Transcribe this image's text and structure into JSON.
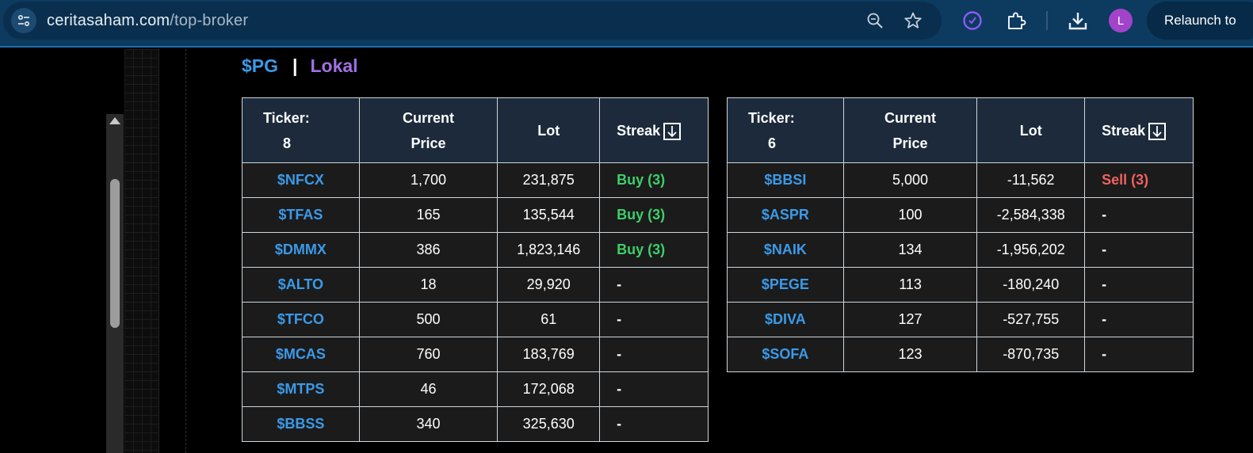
{
  "browser": {
    "url_host": "ceritasaham.com",
    "url_path": "/top-broker",
    "profile_initial": "L",
    "relaunch_label": "Relaunch to",
    "icons": [
      "site-settings-icon",
      "zoom-icon",
      "bookmark-star-icon",
      "extension-timer-icon",
      "extensions-puzzle-icon",
      "download-icon"
    ]
  },
  "heading": {
    "symbol": "$PG",
    "separator": "|",
    "market": "Lokal"
  },
  "colors": {
    "ticker": "#3b9ae8",
    "buy": "#3ccf6a",
    "sell": "#f0625f",
    "market": "#a070e0",
    "header_bg": "#1c2a3b"
  },
  "left_table": {
    "headers": {
      "ticker": "Ticker:",
      "count": "8",
      "price_line1": "Current",
      "price_line2": "Price",
      "lot": "Lot",
      "streak": "Streak"
    },
    "rows": [
      {
        "ticker": "$NFCX",
        "price": "1,700",
        "lot": "231,875",
        "streak": "Buy (3)",
        "type": "buy"
      },
      {
        "ticker": "$TFAS",
        "price": "165",
        "lot": "135,544",
        "streak": "Buy (3)",
        "type": "buy"
      },
      {
        "ticker": "$DMMX",
        "price": "386",
        "lot": "1,823,146",
        "streak": "Buy (3)",
        "type": "buy"
      },
      {
        "ticker": "$ALTO",
        "price": "18",
        "lot": "29,920",
        "streak": "-",
        "type": "none"
      },
      {
        "ticker": "$TFCO",
        "price": "500",
        "lot": "61",
        "streak": "-",
        "type": "none"
      },
      {
        "ticker": "$MCAS",
        "price": "760",
        "lot": "183,769",
        "streak": "-",
        "type": "none"
      },
      {
        "ticker": "$MTPS",
        "price": "46",
        "lot": "172,068",
        "streak": "-",
        "type": "none"
      },
      {
        "ticker": "$BBSS",
        "price": "340",
        "lot": "325,630",
        "streak": "-",
        "type": "none"
      }
    ]
  },
  "right_table": {
    "headers": {
      "ticker": "Ticker:",
      "count": "6",
      "price_line1": "Current",
      "price_line2": "Price",
      "lot": "Lot",
      "streak": "Streak"
    },
    "rows": [
      {
        "ticker": "$BBSI",
        "price": "5,000",
        "lot": "-11,562",
        "streak": "Sell (3)",
        "type": "sell"
      },
      {
        "ticker": "$ASPR",
        "price": "100",
        "lot": "-2,584,338",
        "streak": "-",
        "type": "none"
      },
      {
        "ticker": "$NAIK",
        "price": "134",
        "lot": "-1,956,202",
        "streak": "-",
        "type": "none"
      },
      {
        "ticker": "$PEGE",
        "price": "113",
        "lot": "-180,240",
        "streak": "-",
        "type": "none"
      },
      {
        "ticker": "$DIVA",
        "price": "127",
        "lot": "-527,755",
        "streak": "-",
        "type": "none"
      },
      {
        "ticker": "$SOFA",
        "price": "123",
        "lot": "-870,735",
        "streak": "-",
        "type": "none"
      }
    ]
  }
}
